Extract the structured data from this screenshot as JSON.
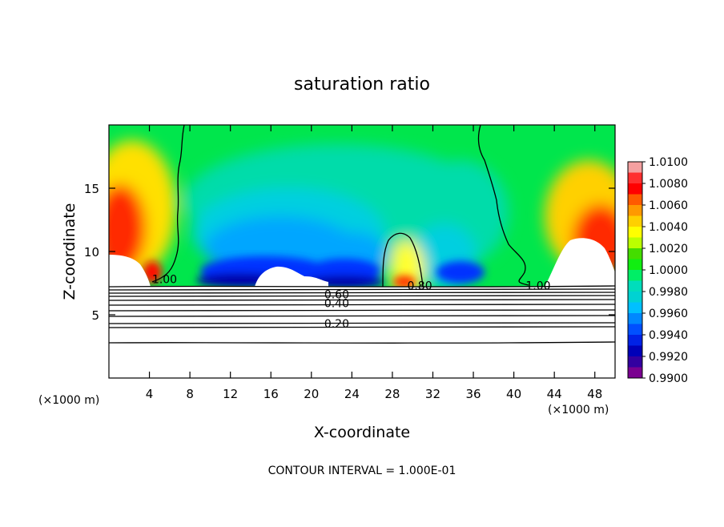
{
  "chart_data": {
    "type": "heatmap",
    "title": "saturation ratio",
    "xlabel": "X-coordinate",
    "ylabel": "Z-coordinate",
    "x_unit_label": "(×1000 m)",
    "x_unit_label_right": "(×1000 m)",
    "footer": "CONTOUR INTERVAL = 1.000E-01",
    "xlim": [
      0,
      50
    ],
    "ylim": [
      0,
      20
    ],
    "x_ticks": [
      4,
      8,
      12,
      16,
      20,
      24,
      28,
      32,
      36,
      40,
      44,
      48
    ],
    "y_ticks": [
      5,
      10,
      15
    ],
    "colorbar": {
      "labels": [
        "1.0100",
        "1.0080",
        "1.0060",
        "1.0040",
        "1.0020",
        "1.0000",
        "0.9980",
        "0.9960",
        "0.9940",
        "0.9920",
        "0.9900"
      ],
      "colors": [
        "#f4a0a0",
        "#ff3030",
        "#ff0000",
        "#ff5a00",
        "#ff9900",
        "#ffd000",
        "#ffff00",
        "#bbff00",
        "#44dd00",
        "#11ee11",
        "#00ee66",
        "#00ddbb",
        "#00d2d2",
        "#00c0ff",
        "#0088ff",
        "#0050ff",
        "#0022e6",
        "#0000b8",
        "#3300a0",
        "#7a0090"
      ]
    },
    "contour_labels": [
      {
        "text": "0.60",
        "x": 22.5,
        "y": 6.3
      },
      {
        "text": "0.40",
        "x": 22.5,
        "y": 5.6
      },
      {
        "text": "0.20",
        "x": 22.5,
        "y": 4.0
      },
      {
        "text": "0.80",
        "x": 30.7,
        "y": 7.0
      },
      {
        "text": "1.00",
        "x": 42.4,
        "y": 7.0
      },
      {
        "text": "1.00",
        "x": 5.5,
        "y": 7.5
      }
    ]
  }
}
